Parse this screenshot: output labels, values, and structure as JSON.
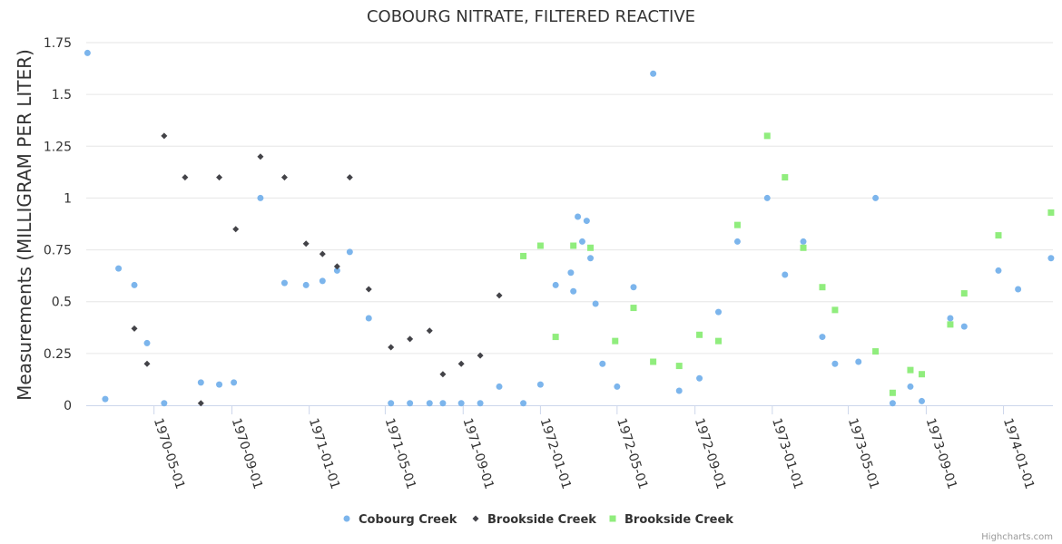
{
  "chart_data": {
    "type": "scatter",
    "title": "COBOURG NITRATE, FILTERED REACTIVE",
    "ylabel": "Measurements (MILLIGRAM PER LITER)",
    "xlabel": "",
    "ylim": [
      0,
      1.75
    ],
    "xlim": [
      "1970-01-14",
      "1974-03-20"
    ],
    "y_ticks": [
      "0",
      "0.25",
      "0.5",
      "0.75",
      "1",
      "1.25",
      "1.5",
      "1.75"
    ],
    "x_ticks": [
      "1970-05-01",
      "1970-09-01",
      "1971-01-01",
      "1971-05-01",
      "1971-09-01",
      "1972-01-01",
      "1972-05-01",
      "1972-09-01",
      "1973-01-01",
      "1973-05-01",
      "1973-09-01",
      "1974-01-01"
    ],
    "grid": true,
    "legend_position": "bottom-center",
    "credits": "Highcharts.com",
    "series": [
      {
        "name": "Cobourg Creek",
        "color": "#7cb5ec",
        "marker": "circle",
        "points": [
          [
            "1970-01-16",
            1.7
          ],
          [
            "1970-02-13",
            0.03
          ],
          [
            "1970-03-06",
            0.66
          ],
          [
            "1970-03-31",
            0.58
          ],
          [
            "1970-04-20",
            0.3
          ],
          [
            "1970-05-17",
            0.01
          ],
          [
            "1970-07-14",
            0.11
          ],
          [
            "1970-08-12",
            0.1
          ],
          [
            "1970-09-04",
            0.11
          ],
          [
            "1970-10-16",
            1.0
          ],
          [
            "1970-11-23",
            0.59
          ],
          [
            "1970-12-27",
            0.58
          ],
          [
            "1971-01-22",
            0.6
          ],
          [
            "1971-02-14",
            0.65
          ],
          [
            "1971-03-06",
            0.74
          ],
          [
            "1971-04-05",
            0.42
          ],
          [
            "1971-05-10",
            0.01
          ],
          [
            "1971-06-09",
            0.01
          ],
          [
            "1971-07-10",
            0.01
          ],
          [
            "1971-07-31",
            0.01
          ],
          [
            "1971-08-29",
            0.01
          ],
          [
            "1971-09-28",
            0.01
          ],
          [
            "1971-10-28",
            0.09
          ],
          [
            "1971-12-05",
            0.01
          ],
          [
            "1972-01-01",
            0.1
          ],
          [
            "1972-01-25",
            0.58
          ],
          [
            "1972-02-18",
            0.64
          ],
          [
            "1972-02-22",
            0.55
          ],
          [
            "1972-02-29",
            0.91
          ],
          [
            "1972-03-07",
            0.79
          ],
          [
            "1972-03-14",
            0.89
          ],
          [
            "1972-03-20",
            0.71
          ],
          [
            "1972-03-28",
            0.49
          ],
          [
            "1972-04-08",
            0.2
          ],
          [
            "1972-05-01",
            0.09
          ],
          [
            "1972-05-27",
            0.57
          ],
          [
            "1972-06-27",
            1.6
          ],
          [
            "1972-08-07",
            0.07
          ],
          [
            "1972-09-08",
            0.13
          ],
          [
            "1972-10-08",
            0.45
          ],
          [
            "1972-11-07",
            0.79
          ],
          [
            "1972-12-24",
            1.0
          ],
          [
            "1973-01-21",
            0.63
          ],
          [
            "1973-02-19",
            0.79
          ],
          [
            "1973-03-21",
            0.33
          ],
          [
            "1973-04-10",
            0.2
          ],
          [
            "1973-05-17",
            0.21
          ],
          [
            "1973-06-13",
            1.0
          ],
          [
            "1973-07-10",
            0.01
          ],
          [
            "1973-08-07",
            0.09
          ],
          [
            "1973-08-25",
            0.02
          ],
          [
            "1973-10-09",
            0.42
          ],
          [
            "1973-10-31",
            0.38
          ],
          [
            "1973-12-24",
            0.65
          ],
          [
            "1974-01-24",
            0.56
          ],
          [
            "1974-03-17",
            0.71
          ]
        ]
      },
      {
        "name": "Brookside Creek",
        "color": "#434348",
        "marker": "diamond",
        "points": [
          [
            "1970-03-31",
            0.37
          ],
          [
            "1970-04-20",
            0.2
          ],
          [
            "1970-05-17",
            1.3
          ],
          [
            "1970-06-19",
            1.1
          ],
          [
            "1970-07-14",
            0.01
          ],
          [
            "1970-08-12",
            1.1
          ],
          [
            "1970-09-07",
            0.85
          ],
          [
            "1970-10-16",
            1.2
          ],
          [
            "1970-11-23",
            1.1
          ],
          [
            "1970-12-27",
            0.78
          ],
          [
            "1971-01-22",
            0.73
          ],
          [
            "1971-02-14",
            0.67
          ],
          [
            "1971-03-06",
            1.1
          ],
          [
            "1971-04-05",
            0.56
          ],
          [
            "1971-05-10",
            0.28
          ],
          [
            "1971-06-09",
            0.32
          ],
          [
            "1971-07-10",
            0.36
          ],
          [
            "1971-07-31",
            0.15
          ],
          [
            "1971-08-29",
            0.2
          ],
          [
            "1971-09-28",
            0.24
          ],
          [
            "1971-10-28",
            0.53
          ]
        ]
      },
      {
        "name": "Brookside Creek",
        "color": "#90ed7d",
        "marker": "square",
        "points": [
          [
            "1971-12-05",
            0.72
          ],
          [
            "1972-01-01",
            0.77
          ],
          [
            "1972-01-25",
            0.33
          ],
          [
            "1972-02-22",
            0.77
          ],
          [
            "1972-03-20",
            0.76
          ],
          [
            "1972-04-28",
            0.31
          ],
          [
            "1972-05-27",
            0.47
          ],
          [
            "1972-06-27",
            0.21
          ],
          [
            "1972-08-07",
            0.19
          ],
          [
            "1972-09-08",
            0.34
          ],
          [
            "1972-10-08",
            0.31
          ],
          [
            "1972-11-07",
            0.87
          ],
          [
            "1972-12-24",
            1.3
          ],
          [
            "1973-01-21",
            1.1
          ],
          [
            "1973-02-19",
            0.76
          ],
          [
            "1973-03-21",
            0.57
          ],
          [
            "1973-04-10",
            0.46
          ],
          [
            "1973-06-13",
            0.26
          ],
          [
            "1973-07-10",
            0.06
          ],
          [
            "1973-08-07",
            0.17
          ],
          [
            "1973-08-25",
            0.15
          ],
          [
            "1973-10-09",
            0.39
          ],
          [
            "1973-10-31",
            0.54
          ],
          [
            "1973-12-24",
            0.82
          ],
          [
            "1974-03-17",
            0.93
          ]
        ]
      }
    ]
  }
}
